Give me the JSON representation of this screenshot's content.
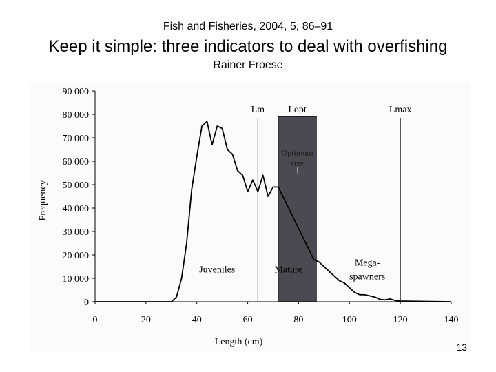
{
  "header": {
    "journal": "Fish and Fisheries, 2004, 5, 86–91",
    "title": "Keep it simple: three indicators to deal with overfishing",
    "author": "Rainer Froese"
  },
  "slide_number": "13",
  "chart_data": {
    "type": "line",
    "title": "",
    "xlabel": "Length (cm)",
    "ylabel": "Frequency",
    "xlim": [
      0,
      140
    ],
    "ylim": [
      0,
      90000
    ],
    "xticks": [
      0,
      20,
      40,
      60,
      80,
      100,
      120,
      140
    ],
    "yticks": [
      0,
      10000,
      20000,
      30000,
      40000,
      50000,
      60000,
      70000,
      80000,
      90000
    ],
    "ytick_labels": [
      "0",
      "10 000",
      "20 000",
      "30 000",
      "40 000",
      "50 000",
      "60 000",
      "70 000",
      "80 000",
      "90 000"
    ],
    "grid": false,
    "series": [
      {
        "x": [
          0,
          30,
          32,
          34,
          36,
          38,
          40,
          42,
          43,
          44,
          46,
          48,
          50,
          52,
          54,
          56,
          58,
          60,
          62,
          64,
          66,
          68,
          70,
          72,
          86,
          88,
          90,
          92,
          94,
          96,
          98,
          100,
          102,
          104,
          106,
          108,
          110,
          112,
          114,
          116,
          118,
          120,
          140
        ],
        "y": [
          0,
          0,
          2000,
          10000,
          25000,
          48000,
          62000,
          75000,
          76000,
          77000,
          67000,
          75000,
          74000,
          65000,
          63000,
          56000,
          54000,
          47000,
          52000,
          47000,
          54000,
          45000,
          49000,
          49000,
          18000,
          17000,
          15000,
          13000,
          11000,
          9000,
          8000,
          6000,
          4000,
          3000,
          3000,
          2500,
          2000,
          1000,
          800,
          1200,
          500,
          300,
          0
        ]
      }
    ],
    "vertical_lines": [
      {
        "label": "Lm",
        "x": 64
      },
      {
        "label": "Lmax",
        "x": 120
      }
    ],
    "shaded_band": {
      "label": "Lopt",
      "x_start": 72,
      "x_end": 87,
      "y_top": 79000,
      "color": "#4a4a52",
      "inner_label": [
        "Optimum",
        "size"
      ]
    },
    "annotations": [
      {
        "text": [
          "Juveniles"
        ],
        "x": 48,
        "y": 12500
      },
      {
        "text": [
          "Mature"
        ],
        "x": 76,
        "y": 12500
      },
      {
        "text": [
          "Mega-",
          "spawners"
        ],
        "x": 107,
        "y": 15500
      }
    ],
    "colors": {
      "line": "#000000",
      "axis": "#000000",
      "band": "#4a4a52",
      "band_edge": "#1a1a1a"
    }
  }
}
